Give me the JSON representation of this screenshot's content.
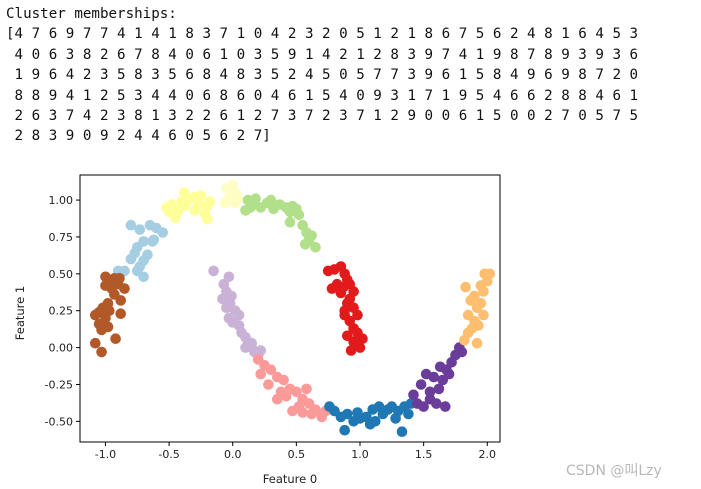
{
  "output": {
    "title": "Cluster memberships:",
    "lines": [
      "[4 7 6 9 7 7 4 1 4 1 8 3 7 1 0 4 2 3 2 0 5 1 2 1 8 6 7 5 6 2 4 8 1 6 4 5 3",
      " 4 0 6 3 8 2 6 7 8 4 0 6 1 0 3 5 9 1 4 2 1 2 8 3 9 7 4 1 9 8 7 8 9 3 9 3 6",
      " 1 9 6 4 2 3 5 8 3 5 6 8 4 8 3 5 2 4 5 0 5 7 7 3 9 6 1 5 8 4 9 6 9 8 7 2 0",
      " 8 8 9 4 1 2 5 3 4 4 0 6 8 6 0 4 6 1 5 4 0 9 3 1 7 1 9 5 4 6 6 2 8 8 4 6 1",
      " 2 6 3 7 4 2 3 8 1 3 2 2 6 1 2 7 3 7 2 3 7 1 2 9 0 0 6 1 5 0 0 2 7 0 5 7 5",
      " 2 8 3 9 0 9 2 4 4 6 0 5 6 2 7]"
    ]
  },
  "watermark": "CSDN @叫Lzy",
  "chart_data": {
    "type": "scatter",
    "xlabel": "Feature 0",
    "ylabel": "Feature 1",
    "xlim": [
      -1.2,
      2.1
    ],
    "ylim": [
      -0.64,
      1.17
    ],
    "xticks": [
      "-1.0",
      "-0.5",
      "0.0",
      "0.5",
      "1.0",
      "1.5",
      "2.0"
    ],
    "yticks": [
      "-0.50",
      "-0.25",
      "0.00",
      "0.25",
      "0.50",
      "0.75",
      "1.00"
    ],
    "grid": false,
    "marker": "circle",
    "series": [
      {
        "color": "#a6cee3",
        "points": [
          [
            -0.8,
            0.83
          ],
          [
            -0.73,
            0.8
          ],
          [
            -0.65,
            0.83
          ],
          [
            -0.6,
            0.81
          ],
          [
            -0.55,
            0.78
          ],
          [
            -0.7,
            0.72
          ],
          [
            -0.75,
            0.68
          ],
          [
            -0.63,
            0.72
          ],
          [
            -0.8,
            0.6
          ],
          [
            -0.77,
            0.64
          ],
          [
            -0.7,
            0.59
          ],
          [
            -0.67,
            0.63
          ],
          [
            -0.73,
            0.55
          ],
          [
            -0.75,
            0.52
          ],
          [
            -0.7,
            0.48
          ],
          [
            -0.85,
            0.52
          ],
          [
            -0.9,
            0.52
          ],
          [
            -0.88,
            0.5
          ],
          [
            -0.62,
            0.73
          ]
        ]
      },
      {
        "color": "#ffff99",
        "points": [
          [
            -0.48,
            0.97
          ],
          [
            -0.5,
            0.92
          ],
          [
            -0.45,
            0.88
          ],
          [
            -0.52,
            0.95
          ],
          [
            -0.4,
            0.99
          ],
          [
            -0.38,
            1.05
          ],
          [
            -0.35,
            1.0
          ],
          [
            -0.3,
            1.02
          ],
          [
            -0.27,
            0.97
          ],
          [
            -0.25,
            1.03
          ],
          [
            -0.2,
            0.96
          ],
          [
            -0.22,
            0.91
          ],
          [
            -0.3,
            0.93
          ],
          [
            -0.18,
            0.99
          ],
          [
            -0.2,
            0.87
          ],
          [
            -0.43,
            0.93
          ],
          [
            -0.38,
            0.96
          ]
        ]
      },
      {
        "color": "#fdfdc4",
        "points": [
          [
            -0.05,
            1.08
          ],
          [
            0.0,
            1.07
          ],
          [
            0.03,
            1.04
          ],
          [
            -0.03,
            1.01
          ],
          [
            0.02,
            0.98
          ],
          [
            -0.06,
            0.98
          ],
          [
            0.04,
            1.01
          ],
          [
            0.0,
            1.1
          ]
        ]
      },
      {
        "color": "#b2df8a",
        "points": [
          [
            0.12,
            1.0
          ],
          [
            0.16,
            0.97
          ],
          [
            0.18,
            1.01
          ],
          [
            0.22,
            0.95
          ],
          [
            0.27,
            0.98
          ],
          [
            0.3,
            1.0
          ],
          [
            0.32,
            0.94
          ],
          [
            0.37,
            0.97
          ],
          [
            0.42,
            0.95
          ],
          [
            0.45,
            0.92
          ],
          [
            0.47,
            0.96
          ],
          [
            0.5,
            0.94
          ],
          [
            0.52,
            0.9
          ],
          [
            0.45,
            0.85
          ],
          [
            0.55,
            0.83
          ],
          [
            0.58,
            0.78
          ],
          [
            0.6,
            0.73
          ],
          [
            0.62,
            0.76
          ],
          [
            0.57,
            0.7
          ],
          [
            0.65,
            0.68
          ],
          [
            0.1,
            0.93
          ],
          [
            0.14,
            0.95
          ]
        ]
      },
      {
        "color": "#e31a1c",
        "points": [
          [
            0.75,
            0.52
          ],
          [
            0.8,
            0.53
          ],
          [
            0.85,
            0.55
          ],
          [
            0.88,
            0.5
          ],
          [
            0.9,
            0.46
          ],
          [
            0.87,
            0.41
          ],
          [
            0.82,
            0.43
          ],
          [
            0.78,
            0.4
          ],
          [
            0.92,
            0.43
          ],
          [
            0.95,
            0.38
          ],
          [
            0.9,
            0.3
          ],
          [
            0.95,
            0.27
          ],
          [
            0.88,
            0.22
          ],
          [
            0.98,
            0.22
          ],
          [
            0.92,
            0.18
          ],
          [
            0.95,
            0.13
          ],
          [
            0.98,
            0.1
          ],
          [
            0.9,
            0.08
          ],
          [
            0.95,
            0.04
          ],
          [
            1.02,
            0.06
          ],
          [
            1.0,
            0.0
          ],
          [
            0.93,
            -0.02
          ],
          [
            0.85,
            0.37
          ],
          [
            0.92,
            0.33
          ],
          [
            0.88,
            0.25
          ]
        ]
      },
      {
        "color": "#cab2d6",
        "points": [
          [
            -0.15,
            0.52
          ],
          [
            -0.03,
            0.48
          ],
          [
            -0.07,
            0.43
          ],
          [
            -0.05,
            0.38
          ],
          [
            -0.08,
            0.33
          ],
          [
            -0.02,
            0.3
          ],
          [
            -0.05,
            0.27
          ],
          [
            0.02,
            0.25
          ],
          [
            -0.03,
            0.2
          ],
          [
            0.0,
            0.17
          ],
          [
            0.05,
            0.15
          ],
          [
            0.07,
            0.1
          ],
          [
            0.1,
            0.07
          ],
          [
            0.12,
            0.04
          ],
          [
            0.15,
            0.0
          ],
          [
            0.17,
            -0.03
          ],
          [
            0.2,
            -0.05
          ],
          [
            0.22,
            -0.02
          ],
          [
            0.1,
            0.0
          ],
          [
            0.15,
            0.03
          ],
          [
            0.05,
            0.22
          ],
          [
            -0.01,
            0.35
          ]
        ]
      },
      {
        "color": "#fb9a99",
        "points": [
          [
            0.2,
            -0.08
          ],
          [
            0.25,
            -0.12
          ],
          [
            0.22,
            -0.18
          ],
          [
            0.3,
            -0.15
          ],
          [
            0.35,
            -0.2
          ],
          [
            0.28,
            -0.25
          ],
          [
            0.4,
            -0.22
          ],
          [
            0.45,
            -0.28
          ],
          [
            0.42,
            -0.33
          ],
          [
            0.5,
            -0.3
          ],
          [
            0.55,
            -0.35
          ],
          [
            0.52,
            -0.4
          ],
          [
            0.6,
            -0.38
          ],
          [
            0.65,
            -0.42
          ],
          [
            0.62,
            -0.45
          ],
          [
            0.7,
            -0.47
          ],
          [
            0.73,
            -0.43
          ],
          [
            0.58,
            -0.28
          ],
          [
            0.35,
            -0.35
          ],
          [
            0.47,
            -0.43
          ],
          [
            0.55,
            -0.44
          ],
          [
            0.38,
            -0.3
          ]
        ]
      },
      {
        "color": "#1f78b4",
        "points": [
          [
            0.8,
            -0.43
          ],
          [
            0.85,
            -0.47
          ],
          [
            0.9,
            -0.45
          ],
          [
            0.95,
            -0.5
          ],
          [
            0.98,
            -0.44
          ],
          [
            1.05,
            -0.47
          ],
          [
            1.08,
            -0.52
          ],
          [
            1.1,
            -0.42
          ],
          [
            1.15,
            -0.4
          ],
          [
            1.18,
            -0.45
          ],
          [
            1.22,
            -0.42
          ],
          [
            1.25,
            -0.4
          ],
          [
            1.3,
            -0.43
          ],
          [
            1.35,
            -0.4
          ],
          [
            1.38,
            -0.45
          ],
          [
            1.4,
            -0.38
          ],
          [
            0.88,
            -0.56
          ],
          [
            1.12,
            -0.5
          ],
          [
            1.33,
            -0.57
          ],
          [
            1.0,
            -0.48
          ],
          [
            1.28,
            -0.48
          ],
          [
            0.76,
            -0.4
          ]
        ]
      },
      {
        "color": "#6a3d9a",
        "points": [
          [
            1.45,
            -0.38
          ],
          [
            1.5,
            -0.4
          ],
          [
            1.55,
            -0.35
          ],
          [
            1.6,
            -0.38
          ],
          [
            1.55,
            -0.3
          ],
          [
            1.48,
            -0.25
          ],
          [
            1.62,
            -0.28
          ],
          [
            1.65,
            -0.22
          ],
          [
            1.58,
            -0.2
          ],
          [
            1.7,
            -0.18
          ],
          [
            1.72,
            -0.1
          ],
          [
            1.75,
            -0.05
          ],
          [
            1.78,
            0.0
          ],
          [
            1.8,
            -0.03
          ],
          [
            1.68,
            -0.15
          ],
          [
            1.52,
            -0.18
          ],
          [
            1.63,
            -0.13
          ],
          [
            1.42,
            -0.32
          ],
          [
            1.67,
            -0.4
          ]
        ]
      },
      {
        "color": "#fdbf6f",
        "points": [
          [
            1.82,
            0.05
          ],
          [
            1.85,
            0.1
          ],
          [
            1.88,
            0.13
          ],
          [
            1.9,
            0.18
          ],
          [
            1.85,
            0.22
          ],
          [
            1.92,
            0.27
          ],
          [
            1.95,
            0.3
          ],
          [
            1.9,
            0.35
          ],
          [
            1.97,
            0.38
          ],
          [
            1.95,
            0.42
          ],
          [
            2.0,
            0.45
          ],
          [
            1.98,
            0.5
          ],
          [
            2.02,
            0.5
          ],
          [
            1.87,
            0.32
          ],
          [
            1.92,
            0.03
          ],
          [
            1.83,
            0.41
          ],
          [
            1.97,
            0.22
          ],
          [
            1.93,
            0.15
          ]
        ]
      },
      {
        "color": "#b15928",
        "points": [
          [
            -1.0,
            0.48
          ],
          [
            -0.97,
            0.45
          ],
          [
            -0.93,
            0.47
          ],
          [
            -1.0,
            0.42
          ],
          [
            -0.95,
            0.4
          ],
          [
            -0.9,
            0.43
          ],
          [
            -0.93,
            0.36
          ],
          [
            -0.88,
            0.32
          ],
          [
            -0.85,
            0.4
          ],
          [
            -0.98,
            0.3
          ],
          [
            -1.02,
            0.27
          ],
          [
            -0.97,
            0.25
          ],
          [
            -1.05,
            0.24
          ],
          [
            -1.08,
            0.22
          ],
          [
            -1.0,
            0.2
          ],
          [
            -1.05,
            0.16
          ],
          [
            -1.03,
            0.12
          ],
          [
            -0.88,
            0.23
          ],
          [
            -1.08,
            0.03
          ],
          [
            -1.03,
            -0.03
          ],
          [
            -0.92,
            0.06
          ],
          [
            -0.98,
            0.14
          ],
          [
            -0.89,
            0.47
          ]
        ]
      }
    ]
  }
}
